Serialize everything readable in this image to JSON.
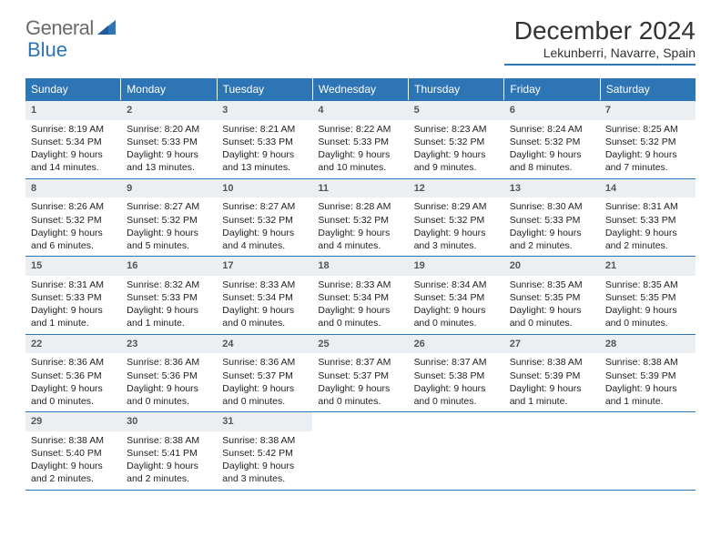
{
  "logo": {
    "general": "General",
    "blue": "Blue"
  },
  "title": "December 2024",
  "location": "Lekunberri, Navarre, Spain",
  "colors": {
    "header_bg": "#2e75b6",
    "header_text": "#ffffff",
    "daynum_bg": "#eceff2",
    "border": "#2e75b6",
    "body_text": "#222222",
    "title_text": "#333333",
    "logo_gray": "#6b6b6b",
    "logo_blue": "#2e75b6"
  },
  "typography": {
    "title_fontsize": 28,
    "location_fontsize": 14,
    "dow_fontsize": 12,
    "daynum_fontsize": 11,
    "cell_fontsize": 10.5
  },
  "days_of_week": [
    "Sunday",
    "Monday",
    "Tuesday",
    "Wednesday",
    "Thursday",
    "Friday",
    "Saturday"
  ],
  "weeks": [
    [
      {
        "n": "1",
        "sr": "8:19 AM",
        "ss": "5:34 PM",
        "dl": "9 hours and 14 minutes."
      },
      {
        "n": "2",
        "sr": "8:20 AM",
        "ss": "5:33 PM",
        "dl": "9 hours and 13 minutes."
      },
      {
        "n": "3",
        "sr": "8:21 AM",
        "ss": "5:33 PM",
        "dl": "9 hours and 13 minutes."
      },
      {
        "n": "4",
        "sr": "8:22 AM",
        "ss": "5:33 PM",
        "dl": "9 hours and 10 minutes."
      },
      {
        "n": "5",
        "sr": "8:23 AM",
        "ss": "5:32 PM",
        "dl": "9 hours and 9 minutes."
      },
      {
        "n": "6",
        "sr": "8:24 AM",
        "ss": "5:32 PM",
        "dl": "9 hours and 8 minutes."
      },
      {
        "n": "7",
        "sr": "8:25 AM",
        "ss": "5:32 PM",
        "dl": "9 hours and 7 minutes."
      }
    ],
    [
      {
        "n": "8",
        "sr": "8:26 AM",
        "ss": "5:32 PM",
        "dl": "9 hours and 6 minutes."
      },
      {
        "n": "9",
        "sr": "8:27 AM",
        "ss": "5:32 PM",
        "dl": "9 hours and 5 minutes."
      },
      {
        "n": "10",
        "sr": "8:27 AM",
        "ss": "5:32 PM",
        "dl": "9 hours and 4 minutes."
      },
      {
        "n": "11",
        "sr": "8:28 AM",
        "ss": "5:32 PM",
        "dl": "9 hours and 4 minutes."
      },
      {
        "n": "12",
        "sr": "8:29 AM",
        "ss": "5:32 PM",
        "dl": "9 hours and 3 minutes."
      },
      {
        "n": "13",
        "sr": "8:30 AM",
        "ss": "5:33 PM",
        "dl": "9 hours and 2 minutes."
      },
      {
        "n": "14",
        "sr": "8:31 AM",
        "ss": "5:33 PM",
        "dl": "9 hours and 2 minutes."
      }
    ],
    [
      {
        "n": "15",
        "sr": "8:31 AM",
        "ss": "5:33 PM",
        "dl": "9 hours and 1 minute."
      },
      {
        "n": "16",
        "sr": "8:32 AM",
        "ss": "5:33 PM",
        "dl": "9 hours and 1 minute."
      },
      {
        "n": "17",
        "sr": "8:33 AM",
        "ss": "5:34 PM",
        "dl": "9 hours and 0 minutes."
      },
      {
        "n": "18",
        "sr": "8:33 AM",
        "ss": "5:34 PM",
        "dl": "9 hours and 0 minutes."
      },
      {
        "n": "19",
        "sr": "8:34 AM",
        "ss": "5:34 PM",
        "dl": "9 hours and 0 minutes."
      },
      {
        "n": "20",
        "sr": "8:35 AM",
        "ss": "5:35 PM",
        "dl": "9 hours and 0 minutes."
      },
      {
        "n": "21",
        "sr": "8:35 AM",
        "ss": "5:35 PM",
        "dl": "9 hours and 0 minutes."
      }
    ],
    [
      {
        "n": "22",
        "sr": "8:36 AM",
        "ss": "5:36 PM",
        "dl": "9 hours and 0 minutes."
      },
      {
        "n": "23",
        "sr": "8:36 AM",
        "ss": "5:36 PM",
        "dl": "9 hours and 0 minutes."
      },
      {
        "n": "24",
        "sr": "8:36 AM",
        "ss": "5:37 PM",
        "dl": "9 hours and 0 minutes."
      },
      {
        "n": "25",
        "sr": "8:37 AM",
        "ss": "5:37 PM",
        "dl": "9 hours and 0 minutes."
      },
      {
        "n": "26",
        "sr": "8:37 AM",
        "ss": "5:38 PM",
        "dl": "9 hours and 0 minutes."
      },
      {
        "n": "27",
        "sr": "8:38 AM",
        "ss": "5:39 PM",
        "dl": "9 hours and 1 minute."
      },
      {
        "n": "28",
        "sr": "8:38 AM",
        "ss": "5:39 PM",
        "dl": "9 hours and 1 minute."
      }
    ],
    [
      {
        "n": "29",
        "sr": "8:38 AM",
        "ss": "5:40 PM",
        "dl": "9 hours and 2 minutes."
      },
      {
        "n": "30",
        "sr": "8:38 AM",
        "ss": "5:41 PM",
        "dl": "9 hours and 2 minutes."
      },
      {
        "n": "31",
        "sr": "8:38 AM",
        "ss": "5:42 PM",
        "dl": "9 hours and 3 minutes."
      },
      {
        "empty": true
      },
      {
        "empty": true
      },
      {
        "empty": true
      },
      {
        "empty": true
      }
    ]
  ],
  "labels": {
    "sunrise": "Sunrise:",
    "sunset": "Sunset:",
    "daylight": "Daylight:"
  }
}
